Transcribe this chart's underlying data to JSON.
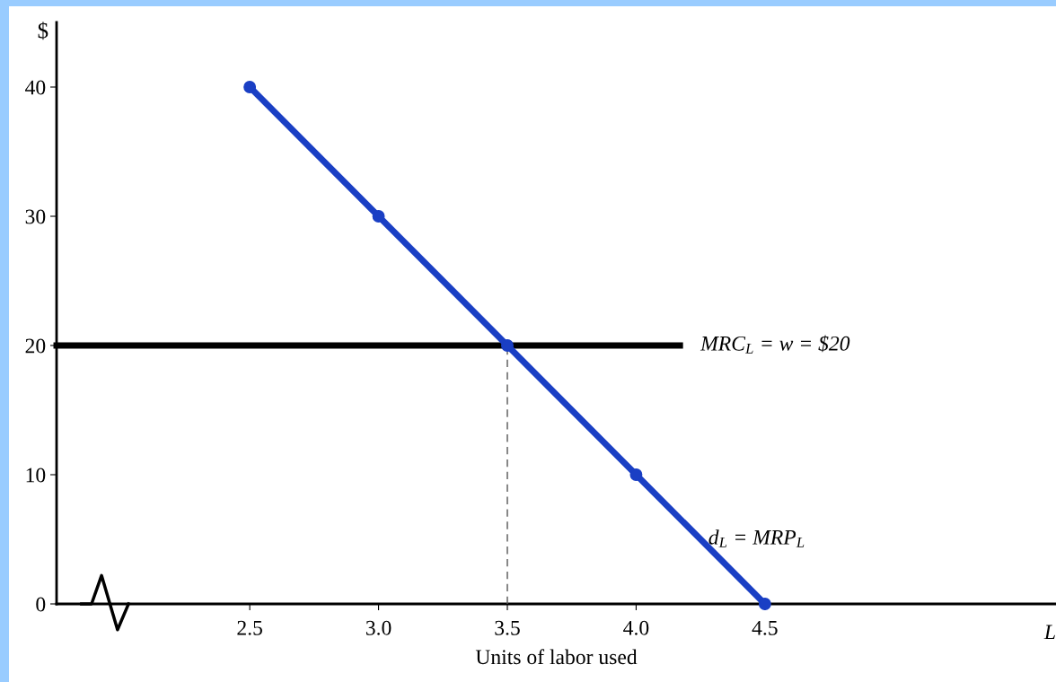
{
  "chart_data": {
    "type": "line",
    "xlabel": "Units of labor used",
    "ylabel": "$",
    "xlim": [
      1.75,
      5.63
    ],
    "ylim": [
      0,
      45
    ],
    "xticks": [
      {
        "value": 2.5,
        "label": "2.5"
      },
      {
        "value": 3.0,
        "label": "3.0"
      },
      {
        "value": 3.5,
        "label": "3.5"
      },
      {
        "value": 4.0,
        "label": "4.0"
      },
      {
        "value": 4.5,
        "label": "4.5"
      }
    ],
    "yticks": [
      0,
      10,
      20,
      30,
      40
    ],
    "grid": false,
    "legend": false,
    "series": [
      {
        "name": "d$_{L}$ = MRP$_{L}$",
        "color": "#1a3fc4",
        "x": [
          2.5,
          3.0,
          3.5,
          4.0,
          4.5
        ],
        "values": [
          40,
          30,
          20,
          10,
          0
        ],
        "marker": "circle",
        "line_style": "solid"
      },
      {
        "name": "MRC$_{L}$ = w = $20",
        "color": "#000000",
        "x": [
          1.75,
          4.17
        ],
        "values": [
          20,
          20
        ],
        "marker": "none",
        "line_style": "solid"
      },
      {
        "color": "#555555",
        "x": [
          3.5,
          3.5
        ],
        "values": [
          0,
          20
        ],
        "marker": "none",
        "line_style": "dashed"
      }
    ],
    "annotations": [
      "L"
    ]
  }
}
